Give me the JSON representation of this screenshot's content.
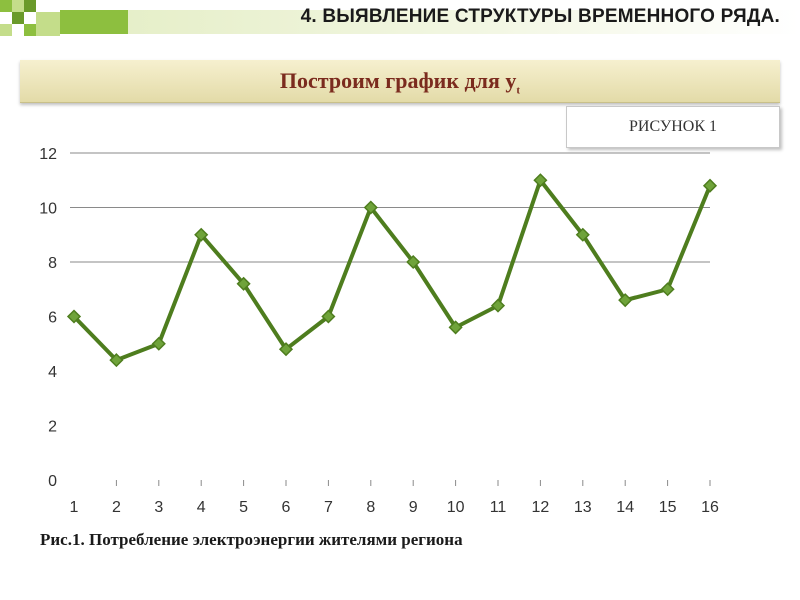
{
  "header": {
    "title": "4. ВЫЯВЛЕНИЕ СТРУКТУРЫ ВРЕМЕННОГО РЯДА.",
    "accent_colors": [
      "#8dbf3f",
      "#c4dd8a",
      "#6a9a2a"
    ]
  },
  "subtitle": {
    "main": "Построим график для y",
    "subscript": "t"
  },
  "figure_label": "РИСУНОК 1",
  "caption": "Рис.1. Потребление электроэнергии жителями региона",
  "chart_data": {
    "type": "line",
    "title": "",
    "xlabel": "",
    "ylabel": "",
    "x": [
      "1",
      "2",
      "3",
      "4",
      "5",
      "6",
      "7",
      "8",
      "9",
      "10",
      "11",
      "12",
      "13",
      "14",
      "15",
      "16"
    ],
    "series": [
      {
        "values": [
          6.0,
          4.4,
          5.0,
          9.0,
          7.2,
          4.8,
          6.0,
          10.0,
          8.0,
          5.6,
          6.4,
          11.0,
          9.0,
          6.6,
          7.0,
          10.8
        ],
        "color": "#4e7d1e",
        "marker": "diamond",
        "marker_color": "#6fa33a"
      }
    ],
    "ylim": [
      0,
      12
    ],
    "yticks": [
      "0",
      "2",
      "4",
      "6",
      "8",
      "10",
      "12"
    ],
    "grid": "horizontal-major",
    "legend": "none"
  }
}
